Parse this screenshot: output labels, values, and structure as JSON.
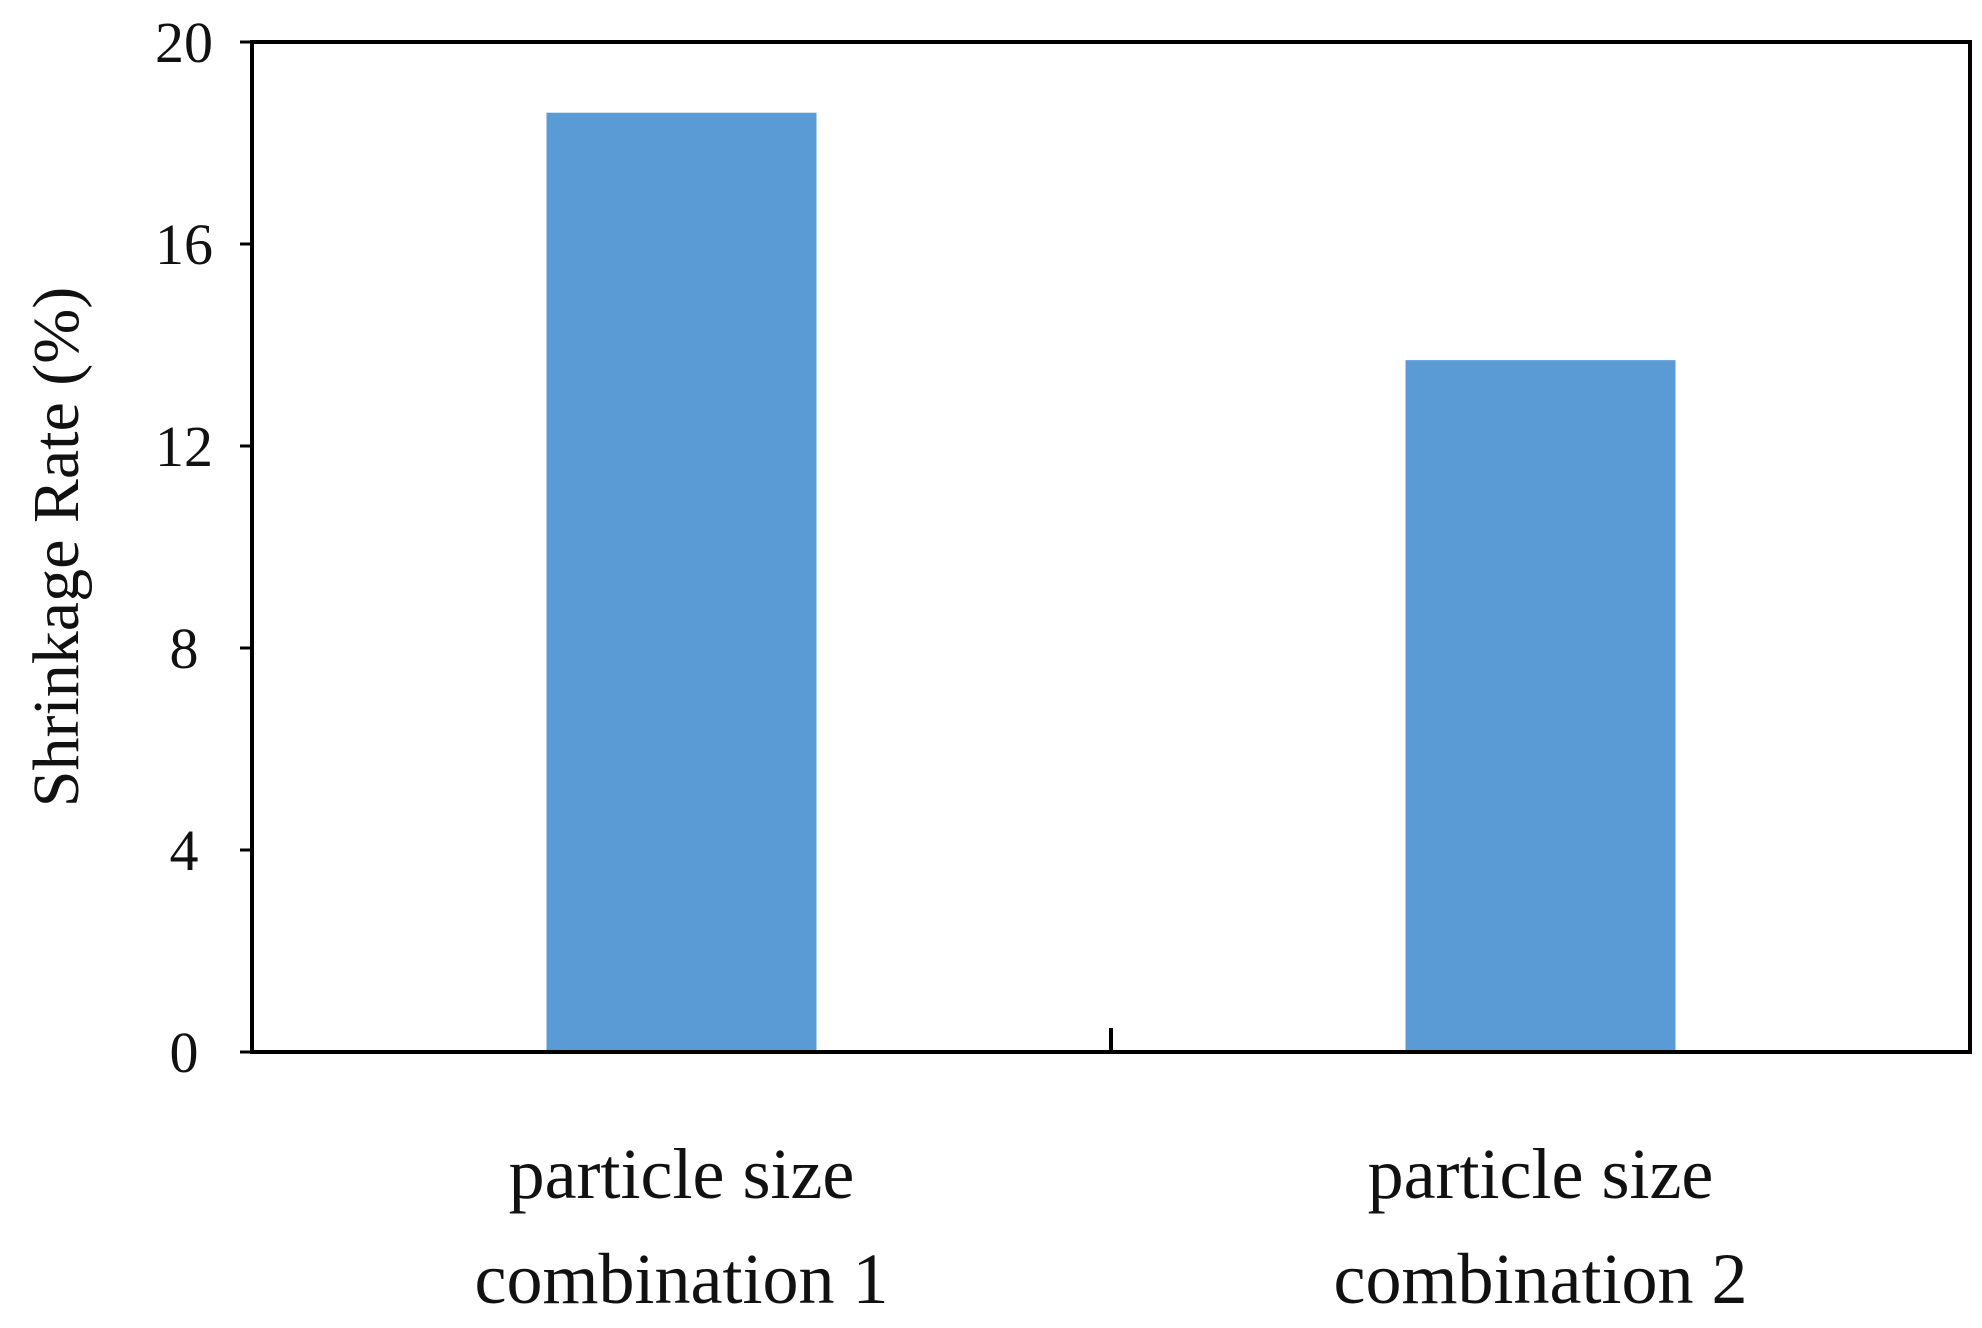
{
  "chart_data": {
    "type": "bar",
    "categories": [
      [
        "particle size",
        "combination 1"
      ],
      [
        "particle size",
        "combination 2"
      ]
    ],
    "values": [
      18.6,
      13.7
    ],
    "title": "",
    "xlabel": "",
    "ylabel": "Shrinkage Rate (%)",
    "ylim": [
      0,
      20
    ],
    "yticks": [
      "0",
      "4",
      "8",
      "12",
      "16",
      "20"
    ],
    "grid": false,
    "legend": "none",
    "colors": {
      "bar": "#5b9bd5",
      "axis": "#000000",
      "text": "#111111"
    }
  }
}
